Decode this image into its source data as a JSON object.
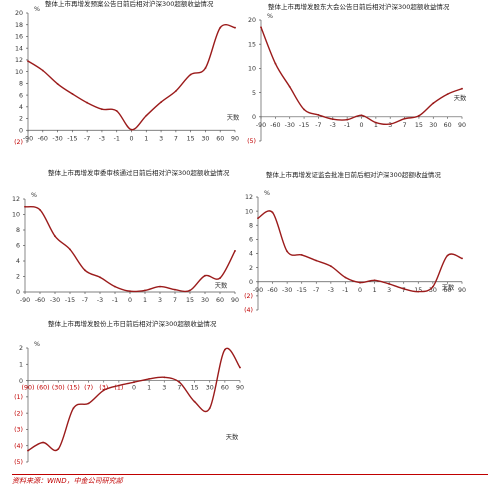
{
  "footer": {
    "source": "资料来源：WIND，中金公司研究部"
  },
  "chart_data": [
    {
      "type": "line",
      "title": "整体上市再增发预案公告日前后相对沪深300超额收益情况",
      "unit": "%",
      "xlabel": "天数",
      "x": [
        "-90",
        "-60",
        "-30",
        "-15",
        "-7",
        "-3",
        "-1",
        "0",
        "1",
        "3",
        "7",
        "15",
        "30",
        "60",
        "90"
      ],
      "ylim": [
        -2,
        20
      ],
      "yticks": [
        -2,
        0,
        2,
        4,
        6,
        8,
        10,
        12,
        14,
        16,
        18,
        20
      ],
      "ytick_labels": [
        "(2)",
        "0",
        "2",
        "4",
        "6",
        "8",
        "10",
        "12",
        "14",
        "16",
        "18",
        "20"
      ],
      "series": [
        {
          "values": [
            11.8,
            10.2,
            7.9,
            6.2,
            4.7,
            3.6,
            3.3,
            0.1,
            2.5,
            4.8,
            6.7,
            9.5,
            10.6,
            17.5,
            17.5
          ]
        }
      ]
    },
    {
      "type": "line",
      "title": "整体上市再增发股东大会公告日前后相对沪深300超额收益情况",
      "unit": "%",
      "xlabel": "天数",
      "x": [
        "-90",
        "-60",
        "-30",
        "-15",
        "-7",
        "-3",
        "-1",
        "0",
        "1",
        "3",
        "7",
        "15",
        "30",
        "60",
        "90"
      ],
      "ylim": [
        -5,
        20
      ],
      "yticks": [
        -5,
        0,
        5,
        10,
        15,
        20
      ],
      "ytick_labels": [
        "(5)",
        "0",
        "5",
        "10",
        "15",
        "20"
      ],
      "series": [
        {
          "values": [
            18.5,
            11,
            6.2,
            1.5,
            0.4,
            -0.5,
            -0.6,
            0.3,
            -1.2,
            -1.5,
            -0.4,
            0.2,
            2.8,
            4.7,
            5.8
          ]
        }
      ]
    },
    {
      "type": "line",
      "title": "整体上市再增发审委审核通过日前后相对沪深300超额收益情况",
      "unit": "%",
      "xlabel": "天数",
      "x": [
        "-90",
        "-60",
        "-30",
        "-15",
        "-7",
        "-3",
        "-1",
        "0",
        "1",
        "3",
        "7",
        "15",
        "30",
        "60",
        "90"
      ],
      "ylim": [
        0,
        12
      ],
      "yticks": [
        0,
        2,
        4,
        6,
        8,
        10,
        12
      ],
      "ytick_labels": [
        "0",
        "2",
        "4",
        "6",
        "8",
        "10",
        "12"
      ],
      "series": [
        {
          "values": [
            11,
            10.6,
            7.2,
            5.5,
            2.8,
            1.9,
            0.7,
            0.1,
            0.2,
            0.7,
            0.3,
            0.2,
            2.1,
            1.8,
            5.3
          ]
        }
      ]
    },
    {
      "type": "line",
      "title": "整体上市再增发证监会批准日前后相对沪深300超额收益情况",
      "unit": "%",
      "xlabel": "天数",
      "x": [
        "-90",
        "-60",
        "-30",
        "-15",
        "-7",
        "-3",
        "-1",
        "0",
        "1",
        "3",
        "7",
        "15",
        "30",
        "60",
        "90"
      ],
      "ylim": [
        -4,
        12
      ],
      "yticks": [
        -4,
        -2,
        0,
        2,
        4,
        6,
        8,
        10,
        12
      ],
      "ytick_labels": [
        "(4)",
        "(2)",
        "0",
        "2",
        "4",
        "6",
        "8",
        "10",
        "12"
      ],
      "series": [
        {
          "values": [
            9,
            9.8,
            4.3,
            3.8,
            3,
            2.2,
            0.6,
            -0.1,
            0.2,
            -0.3,
            -1,
            -1.4,
            -0.7,
            3.7,
            3.3
          ]
        }
      ]
    },
    {
      "type": "line",
      "title": "整体上市再增发股份上市日前后相对沪深300超额收益情况",
      "unit": "%",
      "xlabel": "天数",
      "x": [
        "(90)",
        "(60)",
        "(30)",
        "(15)",
        "(7)",
        "(3)",
        "(1)",
        "0",
        "1",
        "3",
        "7",
        "15",
        "30",
        "60",
        "90"
      ],
      "ylim": [
        -5,
        2
      ],
      "yticks": [
        -5,
        -4,
        -3,
        -2,
        -1,
        0,
        1,
        2
      ],
      "ytick_labels": [
        "(5)",
        "(4)",
        "(3)",
        "(2)",
        "(1)",
        "0",
        "1",
        "2"
      ],
      "series": [
        {
          "values": [
            -4.3,
            -3.8,
            -4.2,
            -1.7,
            -1.4,
            -0.6,
            -0.3,
            -0.1,
            0.1,
            0.2,
            -0.1,
            -1.3,
            -1.7,
            1.9,
            0.8
          ]
        }
      ]
    }
  ]
}
